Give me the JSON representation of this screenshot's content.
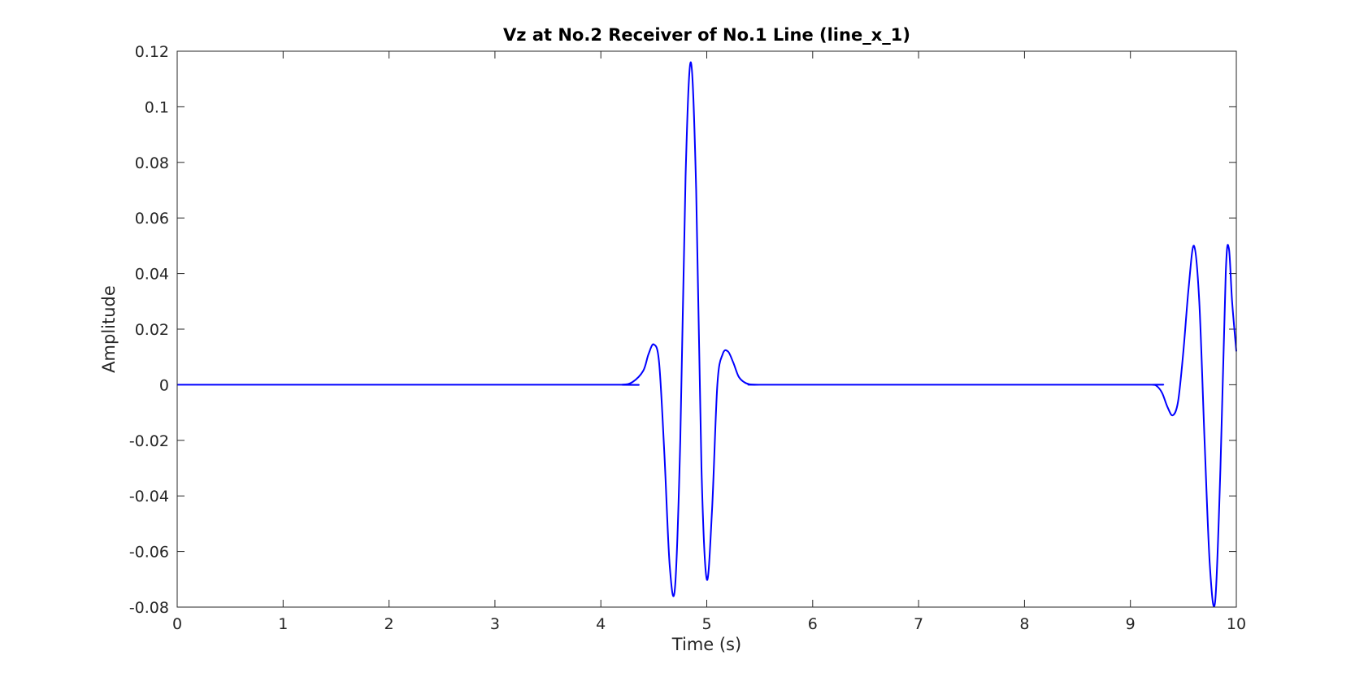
{
  "colors": {
    "line": "#0000ff",
    "axes": "#262626",
    "background": "#ffffff"
  },
  "chart_data": {
    "type": "line",
    "title": "Vz at No.2 Receiver of No.1 Line (line_x_1)",
    "xlabel": "Time (s)",
    "ylabel": "Amplitude",
    "xlim": [
      0,
      10
    ],
    "ylim": [
      -0.08,
      0.12
    ],
    "xticks": [
      0,
      1,
      2,
      3,
      4,
      5,
      6,
      7,
      8,
      9,
      10
    ],
    "xtick_labels": [
      "0",
      "1",
      "2",
      "3",
      "4",
      "5",
      "6",
      "7",
      "8",
      "9",
      "10"
    ],
    "yticks": [
      -0.08,
      -0.06,
      -0.04,
      -0.02,
      0,
      0.02,
      0.04,
      0.06,
      0.08,
      0.1,
      0.12
    ],
    "ytick_labels": [
      "-0.08",
      "-0.06",
      "-0.04",
      "-0.02",
      "0",
      "0.02",
      "0.04",
      "0.06",
      "0.08",
      "0.1",
      "0.12"
    ],
    "grid": false,
    "legend": "none",
    "series": [
      {
        "x": [
          0,
          4.0,
          4.2,
          4.3,
          4.4,
          4.45,
          4.5,
          4.55,
          4.6,
          4.65,
          4.7,
          4.75,
          4.8,
          4.85,
          4.9,
          4.95,
          5.0,
          5.05,
          5.1,
          5.15,
          5.2,
          5.25,
          5.3,
          5.35,
          5.4,
          5.5,
          5.7,
          9.0,
          9.2,
          9.25,
          9.3,
          9.35,
          9.4,
          9.45,
          9.5,
          9.55,
          9.6,
          9.65,
          9.7,
          9.75,
          9.8,
          9.85,
          9.9,
          9.93,
          9.96,
          10.0
        ],
        "y": [
          0,
          0,
          0,
          0.001,
          0.005,
          0.011,
          0.0145,
          0.008,
          -0.025,
          -0.065,
          -0.073,
          -0.02,
          0.075,
          0.116,
          0.07,
          -0.03,
          -0.07,
          -0.045,
          0.0,
          0.011,
          0.012,
          0.008,
          0.003,
          0.001,
          0.0002,
          0,
          0,
          0,
          0,
          -0.0005,
          -0.003,
          -0.008,
          -0.011,
          -0.006,
          0.012,
          0.035,
          0.05,
          0.03,
          -0.02,
          -0.065,
          -0.078,
          -0.03,
          0.04,
          0.049,
          0.03,
          0.012
        ]
      }
    ]
  }
}
